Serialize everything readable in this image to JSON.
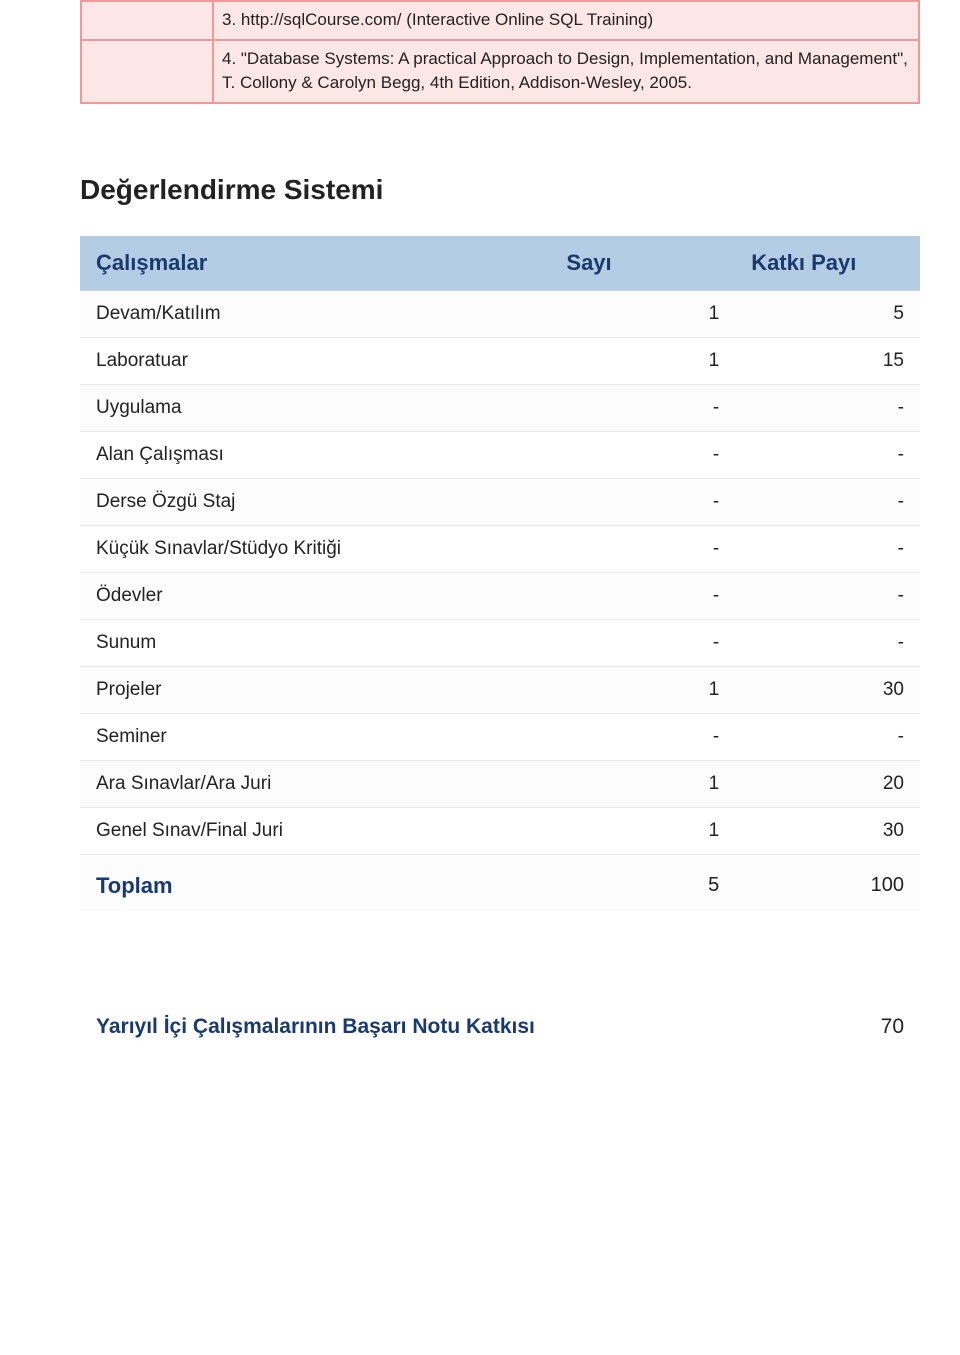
{
  "colors": {
    "page_bg": "#ffffff",
    "ref_row_bg": "#fde6e6",
    "ref_border": "#ef9a9a",
    "header_bg": "#b5cde4",
    "header_text": "#1a3a6e",
    "row_border": "#e8e8e8",
    "body_text": "#222222"
  },
  "typography": {
    "body_font": "Segoe UI, Tahoma, Verdana, sans-serif",
    "section_title_size_pt": 21,
    "table_header_size_pt": 17,
    "table_body_size_pt": 14,
    "refs_size_pt": 13
  },
  "references": {
    "rows": [
      {
        "left": "",
        "right": "3. http://sqlCourse.com/ (Interactive Online SQL Training)"
      },
      {
        "left": "",
        "right": "4. \"Database Systems: A practical Approach to Design, Implementation, and Management\", T. Collony & Carolyn Begg, 4th Edition, Addison-Wesley, 2005."
      }
    ]
  },
  "evaluation": {
    "title": "Değerlendirme Sistemi",
    "columns": {
      "work": "Çalışmalar",
      "count": "Sayı",
      "share": "Katkı Payı"
    },
    "rows": [
      {
        "label": "Devam/Katılım",
        "count": "1",
        "share": "5"
      },
      {
        "label": "Laboratuar",
        "count": "1",
        "share": "15"
      },
      {
        "label": "Uygulama",
        "count": "-",
        "share": "-"
      },
      {
        "label": "Alan Çalışması",
        "count": "-",
        "share": "-"
      },
      {
        "label": "Derse Özgü Staj",
        "count": "-",
        "share": "-"
      },
      {
        "label": "Küçük Sınavlar/Stüdyo Kritiği",
        "count": "-",
        "share": "-"
      },
      {
        "label": "Ödevler",
        "count": "-",
        "share": "-"
      },
      {
        "label": "Sunum",
        "count": "-",
        "share": "-"
      },
      {
        "label": "Projeler",
        "count": "1",
        "share": "30"
      },
      {
        "label": "Seminer",
        "count": "-",
        "share": "-"
      },
      {
        "label": "Ara Sınavlar/Ara Juri",
        "count": "1",
        "share": "20"
      },
      {
        "label": "Genel Sınav/Final Juri",
        "count": "1",
        "share": "30"
      }
    ],
    "total": {
      "label": "Toplam",
      "count": "5",
      "share": "100"
    }
  },
  "contribution": {
    "label": "Yarıyıl İçi Çalışmalarının Başarı Notu Katkısı",
    "value": "70"
  }
}
